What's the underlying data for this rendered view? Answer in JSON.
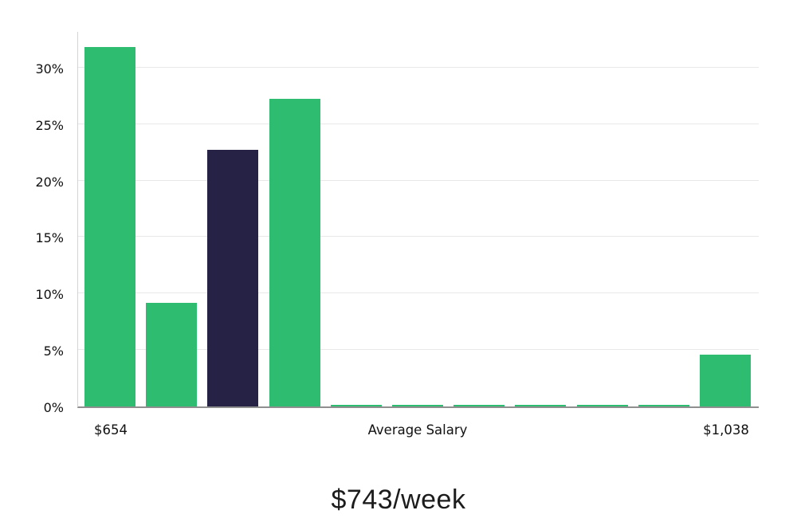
{
  "chart_data": {
    "type": "bar",
    "title": "",
    "xlabel": "Average Salary",
    "ylabel": "",
    "ylim": [
      0,
      33.3
    ],
    "grid": true,
    "categories": [
      "bin-1",
      "bin-2",
      "bin-3",
      "bin-4",
      "bin-5",
      "bin-6",
      "bin-7",
      "bin-8",
      "bin-9",
      "bin-10",
      "bin-11"
    ],
    "values": [
      31.8,
      9.2,
      22.7,
      27.2,
      0.12,
      0.12,
      0.12,
      0.12,
      0.12,
      0.12,
      4.6
    ],
    "bar_colors": [
      "primary",
      "primary",
      "accent",
      "primary",
      "primary",
      "primary",
      "primary",
      "primary",
      "primary",
      "primary",
      "primary"
    ],
    "colors": {
      "primary": "#2ebd70",
      "accent": "#262246",
      "grid": "#e8e8e8",
      "axis": "#8f8f8f"
    },
    "yticks": [
      0,
      5,
      10,
      15,
      20,
      25,
      30
    ],
    "ytick_labels": [
      "0%",
      "5%",
      "10%",
      "15%",
      "20%",
      "25%",
      "30%"
    ],
    "x_axis_labels": {
      "left": "$654",
      "center": "Average Salary",
      "right": "$1,038"
    },
    "caption": "$743/week"
  }
}
